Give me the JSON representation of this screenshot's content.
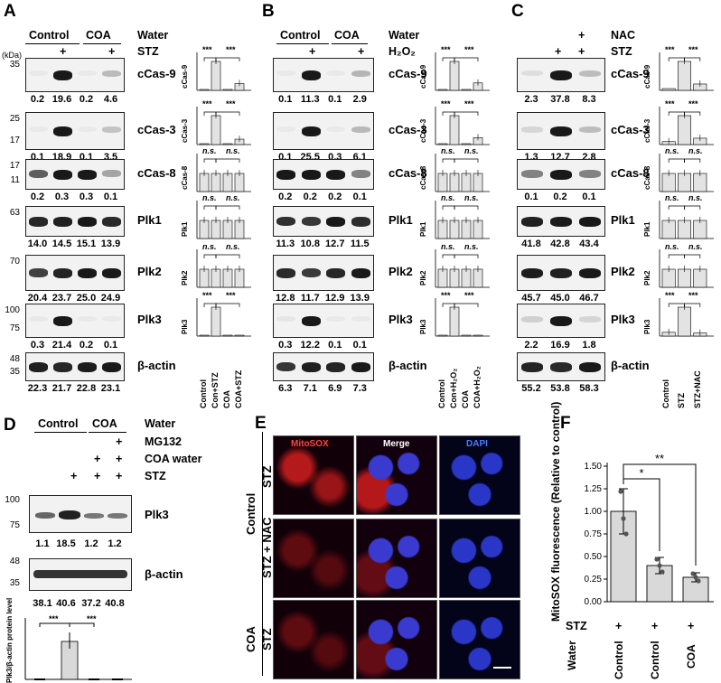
{
  "panels": {
    "A": {
      "letter": "A",
      "groups": [
        "Control",
        "COA"
      ],
      "treat_row1": "Water",
      "treat_row2": "STZ",
      "kda": "(kDa)",
      "plus": "+",
      "rows": [
        {
          "protein": "cCas-9",
          "mw": [
            "35"
          ],
          "nums": [
            "0.2",
            "19.6",
            "0.2",
            "4.6"
          ],
          "yaxis": "cCas-9",
          "sig": [
            "***",
            "***"
          ],
          "bars": [
            1,
            19.6,
            0.6,
            4.6
          ]
        },
        {
          "protein": "cCas-3",
          "mw": [
            "25",
            "17"
          ],
          "nums": [
            "0.1",
            "18.9",
            "0.1",
            "3.5"
          ],
          "yaxis": "cCas-3",
          "sig": [
            "***",
            "***"
          ],
          "bars": [
            0.8,
            18.9,
            0.5,
            3.5
          ]
        },
        {
          "protein": "cCas-8",
          "mw": [
            "17",
            "11"
          ],
          "nums": [
            "0.2",
            "0.3",
            "0.3",
            "0.1"
          ],
          "yaxis": "cCas-8",
          "sig": [
            "n.s.",
            "n.s."
          ],
          "bars": [
            1,
            1,
            1,
            1
          ]
        },
        {
          "protein": "Plk1",
          "mw": [
            "63"
          ],
          "nums": [
            "14.0",
            "14.5",
            "15.1",
            "13.9"
          ],
          "yaxis": "Plk1",
          "sig": [
            "n.s.",
            "n.s."
          ],
          "bars": [
            1,
            1,
            1,
            1
          ]
        },
        {
          "protein": "Plk2",
          "mw": [
            "70"
          ],
          "nums": [
            "20.4",
            "23.7",
            "25.0",
            "24.9"
          ],
          "yaxis": "Plk2",
          "sig": [
            "n.s.",
            "n.s."
          ],
          "bars": [
            1,
            1,
            1,
            1
          ]
        },
        {
          "protein": "Plk3",
          "mw": [
            "100",
            "75"
          ],
          "nums": [
            "0.3",
            "21.4",
            "0.2",
            "0.1"
          ],
          "yaxis": "Plk3",
          "sig": [
            "***",
            "***"
          ],
          "bars": [
            0.5,
            21.4,
            0.3,
            0.2
          ]
        }
      ],
      "actin": {
        "protein": "β-actin",
        "mw": [
          "48",
          "35"
        ],
        "nums": [
          "22.3",
          "21.7",
          "22.8",
          "23.1"
        ]
      },
      "xlabels": [
        "Control",
        "Con+STZ",
        "COA",
        "COA+STZ"
      ]
    },
    "B": {
      "letter": "B",
      "groups": [
        "Control",
        "COA"
      ],
      "treat_row1": "Water",
      "treat_row2": "H₂O₂",
      "plus": "+",
      "rows": [
        {
          "protein": "cCas-9",
          "nums": [
            "0.1",
            "11.3",
            "0.1",
            "2.9"
          ],
          "yaxis": "cCas-9",
          "sig": [
            "***",
            "***"
          ]
        },
        {
          "protein": "cCas-3",
          "nums": [
            "0.1",
            "25.5",
            "0.3",
            "6.1"
          ],
          "yaxis": "cCas-3",
          "sig": [
            "***",
            "***"
          ]
        },
        {
          "protein": "cCas-8",
          "nums": [
            "0.2",
            "0.2",
            "0.2",
            "0.1"
          ],
          "yaxis": "cCas-8",
          "sig": [
            "n.s.",
            "n.s."
          ]
        },
        {
          "protein": "Plk1",
          "nums": [
            "11.3",
            "10.8",
            "12.7",
            "11.5"
          ],
          "yaxis": "Plk1",
          "sig": [
            "n.s.",
            "n.s."
          ]
        },
        {
          "protein": "Plk2",
          "nums": [
            "12.8",
            "11.7",
            "12.9",
            "13.9"
          ],
          "yaxis": "Plk2",
          "sig": [
            "n.s.",
            "n.s."
          ]
        },
        {
          "protein": "Plk3",
          "nums": [
            "0.3",
            "12.2",
            "0.1",
            "0.1"
          ],
          "yaxis": "Plk3",
          "sig": [
            "***",
            "***"
          ]
        }
      ],
      "actin": {
        "protein": "β-actin",
        "nums": [
          "6.3",
          "7.1",
          "6.9",
          "7.3"
        ]
      },
      "xlabels": [
        "Control",
        "Con+H₂O₂",
        "COA",
        "COA+H₂O₂"
      ]
    },
    "C": {
      "letter": "C",
      "treat_row1": "NAC",
      "treat_row2": "STZ",
      "plus": "+",
      "rows": [
        {
          "protein": "cCas-9",
          "nums": [
            "2.3",
            "37.8",
            "8.3"
          ],
          "yaxis": "cCas-9",
          "sig": [
            "***",
            "***"
          ]
        },
        {
          "protein": "cCas-3",
          "nums": [
            "1.3",
            "12.7",
            "2.8"
          ],
          "yaxis": "cCas-3",
          "sig": [
            "***",
            "***"
          ]
        },
        {
          "protein": "cCas-8",
          "nums": [
            "0.1",
            "0.2",
            "0.1"
          ],
          "yaxis": "cCas-8",
          "sig": [
            "n.s.",
            "n.s."
          ]
        },
        {
          "protein": "Plk1",
          "nums": [
            "41.8",
            "42.8",
            "43.4"
          ],
          "yaxis": "Plk1",
          "sig": [
            "n.s.",
            "n.s."
          ]
        },
        {
          "protein": "Plk2",
          "nums": [
            "45.7",
            "45.0",
            "46.7"
          ],
          "yaxis": "Plk2",
          "sig": [
            "n.s.",
            "n.s."
          ]
        },
        {
          "protein": "Plk3",
          "nums": [
            "2.2",
            "16.9",
            "1.8"
          ],
          "yaxis": "Plk3",
          "sig": [
            "***",
            "***"
          ]
        }
      ],
      "actin": {
        "protein": "β-actin",
        "nums": [
          "55.2",
          "53.8",
          "58.3"
        ]
      },
      "xlabels": [
        "Control",
        "STZ",
        "STZ+NAC"
      ]
    },
    "D": {
      "letter": "D",
      "groups": [
        "Control",
        "COA"
      ],
      "treat_rows": [
        "Water",
        "MG132",
        "COA water",
        "STZ"
      ],
      "plus": "+",
      "plk3": {
        "protein": "Plk3",
        "mw": [
          "100",
          "75"
        ],
        "nums": [
          "1.1",
          "18.5",
          "1.2",
          "1.2"
        ]
      },
      "actin": {
        "protein": "β-actin",
        "mw": [
          "48",
          "35"
        ],
        "nums": [
          "38.1",
          "40.6",
          "37.2",
          "40.8"
        ]
      },
      "ylabel": "Plk3/β-actin protein level",
      "sig": [
        "***",
        "***"
      ]
    },
    "E": {
      "letter": "E",
      "columns": [
        "MitoSOX",
        "Merge",
        "DAPI"
      ],
      "group_control": "Control",
      "group_coa": "COA",
      "rows": [
        "STZ",
        "STZ + NAC",
        "STZ"
      ]
    },
    "F": {
      "letter": "F",
      "sig_outer": "**",
      "sig_inner": "*",
      "row_labels": [
        "STZ",
        "Water"
      ],
      "plus": "+"
    }
  },
  "chart_data": {
    "type": "bar",
    "categories": [
      "Control",
      "Control",
      "COA"
    ],
    "values": [
      1.0,
      0.4,
      0.27
    ],
    "errors": [
      0.25,
      0.09,
      0.05
    ],
    "points": [
      [
        1.22,
        0.92,
        0.75
      ],
      [
        0.47,
        0.4,
        0.33
      ],
      [
        0.31,
        0.27,
        0.23
      ]
    ],
    "title": "",
    "xlabel": "",
    "ylabel": "MitoSOX fluorescence (Relative to control)",
    "ylim": [
      0,
      1.5
    ],
    "yticks": [
      "0.00",
      "0.25",
      "0.50",
      "0.75",
      "1.00",
      "1.25",
      "1.50"
    ],
    "significance": [
      {
        "pair": [
          0,
          1
        ],
        "label": "*"
      },
      {
        "pair": [
          0,
          2
        ],
        "label": "**"
      }
    ]
  }
}
